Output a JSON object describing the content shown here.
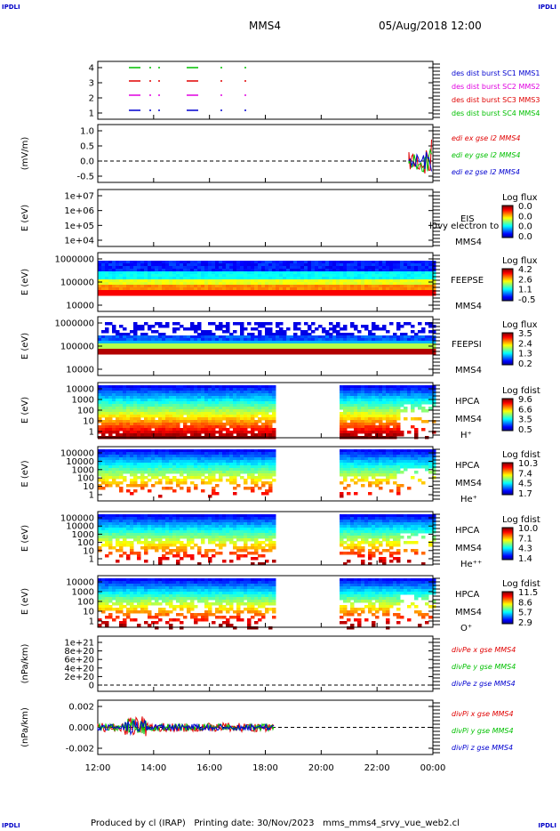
{
  "corner_labels": {
    "tl": "IPDLI",
    "tr": "IPDLI",
    "bl": "IPDLI",
    "br": "IPDLI"
  },
  "header": {
    "mission": "MMS4",
    "datetime": "05/Aug/2018 12:00"
  },
  "footer": {
    "text": "Produced by cl (IRAP)   Printing date: 30/Nov/2023   mms_mms4_srvy_vue_web2.cl"
  },
  "time_axis": {
    "ticks": [
      "12:00",
      "14:00",
      "16:00",
      "18:00",
      "20:00",
      "22:00",
      "00:00"
    ]
  },
  "colors": {
    "red": "#e00000",
    "green": "#00c000",
    "magenta": "#e000e0",
    "blue": "#0000d0"
  },
  "chart_data": [
    {
      "id": "burst",
      "type": "line",
      "yticks": [
        "4",
        "3",
        "2",
        "1"
      ],
      "legend": [
        {
          "text": "des dist burst SC1 MMS1",
          "color": "#0000d0"
        },
        {
          "text": "des dist burst SC2 MMS2",
          "color": "#e000e0"
        },
        {
          "text": "des dist burst SC3 MMS3",
          "color": "#e00000"
        },
        {
          "text": "des dist burst SC4 MMS4",
          "color": "#00c000"
        }
      ]
    },
    {
      "id": "edi",
      "type": "line",
      "ylabel": "(mV/m)",
      "yticks": [
        "1.0",
        "0.5",
        "0.0",
        "-0.5"
      ],
      "ylim": [
        -0.8,
        1.05
      ],
      "legend": [
        {
          "text": "edi ex gse l2 MMS4",
          "color": "#e00000"
        },
        {
          "text": "edi ey gse l2 MMS4",
          "color": "#00c000"
        },
        {
          "text": "edi ez gse l2 MMS4",
          "color": "#0000d0"
        }
      ]
    },
    {
      "id": "eis",
      "type": "heatmap",
      "ylabel": "E (eV)",
      "yticks": [
        "1e+07",
        "1e+06",
        "1e+05",
        "1e+04"
      ],
      "instrument": [
        "EIS",
        "MMS4"
      ],
      "overlay_text": "l0vy electron to",
      "colorbar": {
        "title": "Log flux",
        "ticks": [
          "0.0",
          "0.0",
          "0.0",
          "0.0"
        ]
      }
    },
    {
      "id": "feepse",
      "type": "heatmap",
      "ylabel": "E (eV)",
      "yticks": [
        "1000000",
        "100000",
        "10000"
      ],
      "instrument": [
        "FEEPSE",
        "MMS4"
      ],
      "colorbar": {
        "title": "Log flux",
        "ticks": [
          "4.2",
          "2.6",
          "1.1",
          "-0.5"
        ]
      }
    },
    {
      "id": "feepsi",
      "type": "heatmap",
      "ylabel": "E (eV)",
      "yticks": [
        "1000000",
        "100000",
        "10000"
      ],
      "instrument": [
        "FEEPSI",
        "MMS4"
      ],
      "colorbar": {
        "title": "Log flux",
        "ticks": [
          "3.5",
          "2.4",
          "1.3",
          "0.2"
        ]
      }
    },
    {
      "id": "hpca_h",
      "type": "heatmap",
      "ylabel": "E (eV)",
      "yticks": [
        "10000",
        "1000",
        "100",
        "10",
        "1"
      ],
      "instrument": [
        "HPCA",
        "MMS4",
        "H⁺"
      ],
      "colorbar": {
        "title": "Log fdist",
        "ticks": [
          "9.6",
          "6.6",
          "3.5",
          "0.5"
        ]
      }
    },
    {
      "id": "hpca_he",
      "type": "heatmap",
      "ylabel": "E (eV)",
      "yticks": [
        "100000",
        "10000",
        "1000",
        "100",
        "10",
        "1"
      ],
      "instrument": [
        "HPCA",
        "MMS4",
        "He⁺"
      ],
      "colorbar": {
        "title": "Log fdist",
        "ticks": [
          "10.3",
          "7.4",
          "4.5",
          "1.7"
        ]
      }
    },
    {
      "id": "hpca_hepp",
      "type": "heatmap",
      "ylabel": "E (eV)",
      "yticks": [
        "100000",
        "10000",
        "1000",
        "100",
        "10",
        "1"
      ],
      "instrument": [
        "HPCA",
        "MMS4",
        "He⁺⁺"
      ],
      "colorbar": {
        "title": "Log fdist",
        "ticks": [
          "10.0",
          "7.1",
          "4.3",
          "1.4"
        ]
      }
    },
    {
      "id": "hpca_o",
      "type": "heatmap",
      "ylabel": "E (eV)",
      "yticks": [
        "10000",
        "1000",
        "100",
        "10",
        "1"
      ],
      "instrument": [
        "HPCA",
        "MMS4",
        "O⁺"
      ],
      "colorbar": {
        "title": "Log fdist",
        "ticks": [
          "11.5",
          "8.6",
          "5.7",
          "2.9"
        ]
      }
    },
    {
      "id": "divpe",
      "type": "line",
      "ylabel": "(nPa/km)",
      "yticks": [
        "1e+21",
        "8e+20",
        "6e+20",
        "4e+20",
        "2e+20",
        "0"
      ],
      "legend": [
        {
          "text": "divPe x gse MMS4",
          "color": "#e00000"
        },
        {
          "text": "divPe y gse MMS4",
          "color": "#00c000"
        },
        {
          "text": "divPe z gse MMS4",
          "color": "#0000d0"
        }
      ]
    },
    {
      "id": "divpi",
      "type": "line",
      "ylabel": "(nPa/km)",
      "yticks": [
        "0.002",
        "0.000",
        "-0.002"
      ],
      "ylim": [
        -0.0035,
        0.003
      ],
      "legend": [
        {
          "text": "divPi x gse MMS4",
          "color": "#e00000"
        },
        {
          "text": "divPi y gse MMS4",
          "color": "#00c000"
        },
        {
          "text": "divPi z gse MMS4",
          "color": "#0000d0"
        }
      ]
    }
  ]
}
